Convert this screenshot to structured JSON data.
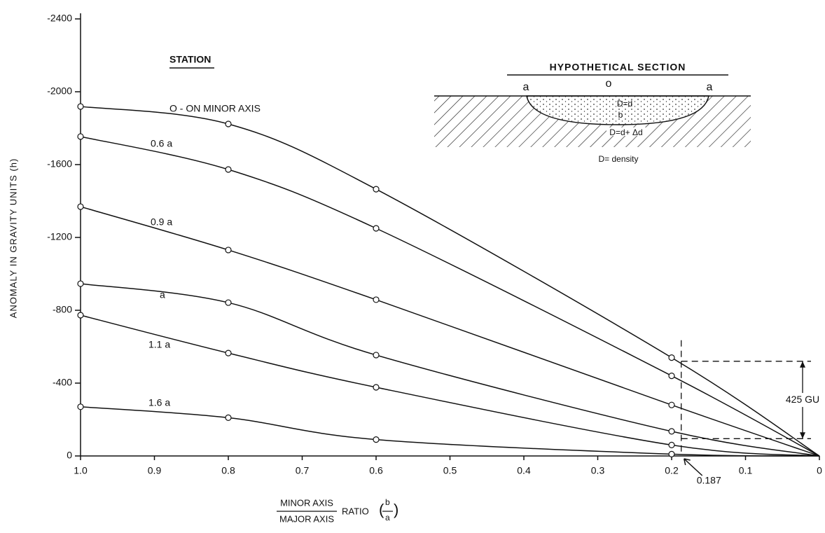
{
  "chart_data": {
    "type": "line",
    "x": [
      1.0,
      0.8,
      0.6,
      0.2,
      0
    ],
    "xlim": [
      1.0,
      0
    ],
    "xticks": [
      {
        "value": 1.0,
        "label": "1.0"
      },
      0.9,
      0.8,
      0.7,
      0.6,
      0.5,
      0.4,
      0.3,
      0.2,
      0.1,
      0
    ],
    "ylim": [
      0,
      -2400
    ],
    "yticks": [
      0,
      -400,
      -800,
      -1200,
      -1600,
      -2000,
      -2400
    ],
    "y_label": "ANOMALY IN GRAVITY UNITS (h)",
    "x_label_numerator": "MINOR AXIS",
    "x_label_denominator": "MAJOR AXIS",
    "x_label_suffix": "RATIO",
    "x_label_fraction_top": "b",
    "x_label_fraction_bottom": "a",
    "legend_title": "STATION",
    "color": "#111111",
    "series": [
      {
        "name": "O - ON MINOR AXIS",
        "values": [
          -1919,
          -1823,
          -1465,
          -540,
          0
        ]
      },
      {
        "name": "0.6 a",
        "values": [
          -1754,
          -1573,
          -1250,
          -440,
          0
        ]
      },
      {
        "name": "0.9 a",
        "values": [
          -1369,
          -1131,
          -858,
          -280,
          0
        ]
      },
      {
        "name": "a",
        "values": [
          -946,
          -842,
          -554,
          -135,
          0
        ]
      },
      {
        "name": "1.1 a",
        "values": [
          -773,
          -565,
          -377,
          -60,
          0
        ]
      },
      {
        "name": "1.6 a",
        "values": [
          -270,
          -210,
          -90,
          -10,
          0
        ]
      }
    ],
    "marker_x": 0.187,
    "bracket_label": "425 GU",
    "bracket_top": -520,
    "bracket_bottom": -95,
    "section": {
      "title": "HYPOTHETICAL SECTION",
      "left_label": "a",
      "center_label": "o",
      "right_label": "a",
      "inner_density": "D=d",
      "axis_label": "b",
      "outer_density": "D=d+ Δd",
      "legend": "D= density"
    }
  }
}
